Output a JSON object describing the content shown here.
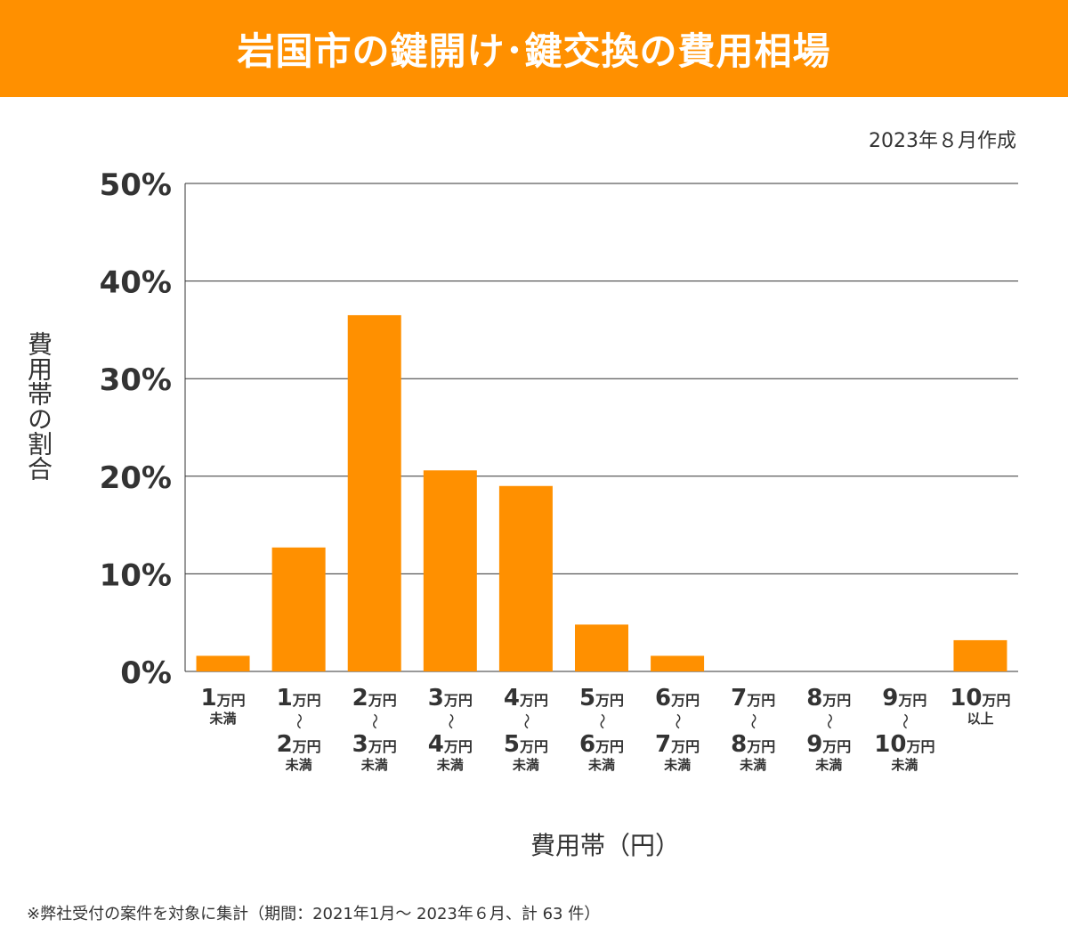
{
  "title": "岩国市の鍵開け･鍵交換の費用相場",
  "date": "2023年８月作成",
  "footnote": "※弊社受付の案件を対象に集計（期間：2021年1月～ 2023年６月、計 63 件）",
  "colors": {
    "header": "#ff9000",
    "bar": "#ff9000",
    "grid": "#333333"
  },
  "chart_data": {
    "type": "bar",
    "title": "岩国市の鍵開け･鍵交換の費用相場",
    "xlabel": "費用帯（円）",
    "ylabel": "費用帯の割合",
    "ylim": [
      0,
      50
    ],
    "yticks": [
      "0%",
      "10%",
      "20%",
      "30%",
      "40%",
      "50%"
    ],
    "grid": true,
    "categories": [
      [
        "1万円",
        "未満"
      ],
      [
        "1万円",
        "〜",
        "2万円",
        "未満"
      ],
      [
        "2万円",
        "〜",
        "3万円",
        "未満"
      ],
      [
        "3万円",
        "〜",
        "4万円",
        "未満"
      ],
      [
        "4万円",
        "〜",
        "5万円",
        "未満"
      ],
      [
        "5万円",
        "〜",
        "6万円",
        "未満"
      ],
      [
        "6万円",
        "〜",
        "7万円",
        "未満"
      ],
      [
        "7万円",
        "〜",
        "8万円",
        "未満"
      ],
      [
        "8万円",
        "〜",
        "9万円",
        "未満"
      ],
      [
        "9万円",
        "〜",
        "10万円",
        "未満"
      ],
      [
        "10万円",
        "以上"
      ]
    ],
    "values": [
      1.6,
      12.7,
      36.5,
      20.6,
      19.0,
      4.8,
      1.6,
      0,
      0,
      0,
      3.2
    ]
  }
}
